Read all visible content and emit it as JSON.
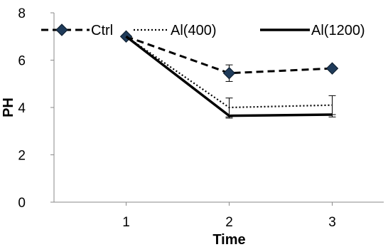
{
  "chart_data": {
    "type": "line",
    "xlabel": "Time",
    "ylabel": "PH",
    "x_ticks": [
      "1",
      "2",
      "3"
    ],
    "y_ticks": [
      "0",
      "2",
      "4",
      "6",
      "8"
    ],
    "ylim": [
      0,
      8
    ],
    "legend_position": "top",
    "grid": false,
    "series": [
      {
        "name": "Ctrl",
        "style": "dashed",
        "marker": "diamond",
        "color": "#000000",
        "marker_color": "#1f3b5a",
        "x": [
          1,
          2,
          3
        ],
        "y": [
          7.0,
          5.45,
          5.65
        ],
        "error_plus": [
          0.0,
          0.35,
          0.0
        ],
        "error_minus": [
          0.0,
          0.35,
          0.0
        ]
      },
      {
        "name": "Al(400)",
        "style": "dotted",
        "marker": "none",
        "color": "#000000",
        "x": [
          1,
          2,
          3
        ],
        "y": [
          7.0,
          4.0,
          4.1
        ],
        "error_plus": [
          0.0,
          0.4,
          0.4
        ],
        "error_minus": [
          0.0,
          0.4,
          0.4
        ]
      },
      {
        "name": "Al(1200)",
        "style": "solid",
        "marker": "none",
        "color": "#000000",
        "x": [
          1,
          2,
          3
        ],
        "y": [
          7.0,
          3.65,
          3.7
        ],
        "error_plus": [
          0.0,
          0.0,
          0.0
        ],
        "error_minus": [
          0.0,
          0.1,
          0.1
        ]
      }
    ]
  }
}
